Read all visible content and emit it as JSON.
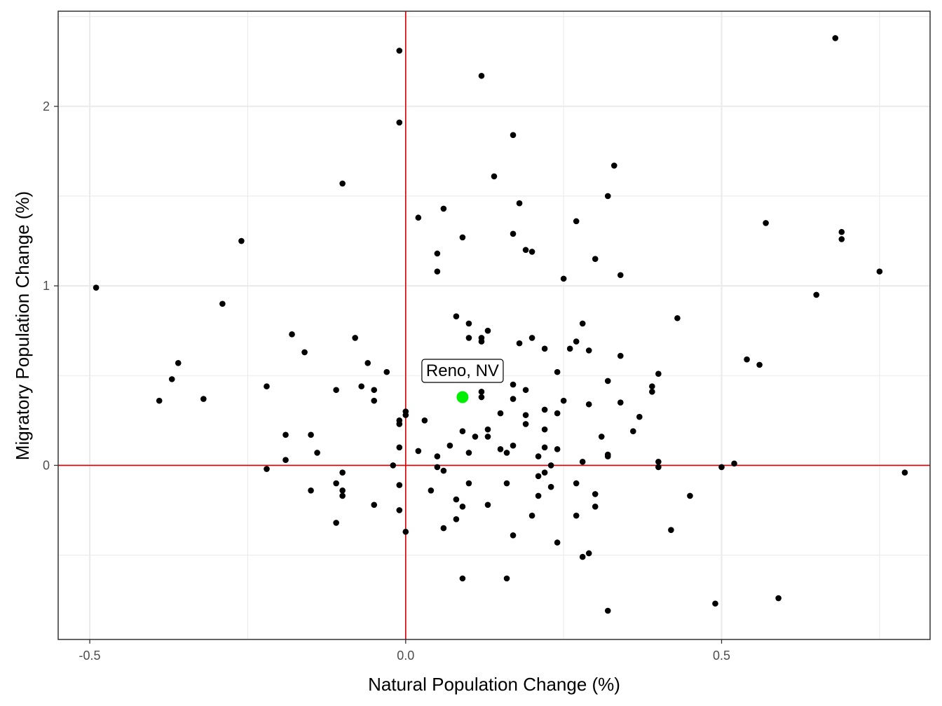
{
  "chart_data": {
    "type": "scatter",
    "xlabel": "Natural Population Change (%)",
    "ylabel": "Migratory Population Change (%)",
    "xlim": [
      -0.55,
      0.83
    ],
    "ylim": [
      -0.97,
      2.53
    ],
    "x_ticks": [
      -0.5,
      0.0,
      0.5
    ],
    "x_tick_labels": [
      "-0.5",
      "0.0",
      "0.5"
    ],
    "y_ticks": [
      0,
      1,
      2
    ],
    "y_tick_labels": [
      "0",
      "1",
      "2"
    ],
    "grid": true,
    "reference_lines": {
      "x": 0,
      "y": 0,
      "color": "#dd0000"
    },
    "point_color": "#000000",
    "highlight_color": "#00ee00",
    "points": [
      [
        -0.49,
        0.99
      ],
      [
        -0.39,
        0.36
      ],
      [
        -0.37,
        0.48
      ],
      [
        -0.36,
        0.57
      ],
      [
        -0.32,
        0.37
      ],
      [
        -0.29,
        0.9
      ],
      [
        -0.26,
        1.25
      ],
      [
        -0.22,
        0.44
      ],
      [
        -0.22,
        -0.02
      ],
      [
        -0.19,
        0.17
      ],
      [
        -0.19,
        0.03
      ],
      [
        -0.18,
        0.73
      ],
      [
        -0.16,
        0.63
      ],
      [
        -0.15,
        0.17
      ],
      [
        -0.15,
        -0.14
      ],
      [
        -0.14,
        0.07
      ],
      [
        -0.11,
        0.42
      ],
      [
        -0.11,
        -0.1
      ],
      [
        -0.11,
        -0.32
      ],
      [
        -0.1,
        1.57
      ],
      [
        -0.1,
        -0.04
      ],
      [
        -0.1,
        -0.14
      ],
      [
        -0.1,
        -0.17
      ],
      [
        -0.08,
        0.71
      ],
      [
        -0.07,
        0.44
      ],
      [
        -0.06,
        0.57
      ],
      [
        -0.05,
        0.42
      ],
      [
        -0.05,
        0.36
      ],
      [
        -0.05,
        -0.22
      ],
      [
        -0.03,
        0.52
      ],
      [
        -0.02,
        0.0
      ],
      [
        -0.01,
        2.31
      ],
      [
        -0.01,
        1.91
      ],
      [
        -0.01,
        0.25
      ],
      [
        -0.01,
        0.23
      ],
      [
        -0.01,
        0.1
      ],
      [
        -0.01,
        -0.11
      ],
      [
        -0.01,
        -0.25
      ],
      [
        0.0,
        0.3
      ],
      [
        0.0,
        0.28
      ],
      [
        0.0,
        -0.37
      ],
      [
        0.02,
        1.38
      ],
      [
        0.02,
        0.08
      ],
      [
        0.03,
        0.52
      ],
      [
        0.03,
        0.25
      ],
      [
        0.04,
        -0.14
      ],
      [
        0.05,
        1.18
      ],
      [
        0.05,
        1.08
      ],
      [
        0.05,
        0.05
      ],
      [
        0.05,
        -0.01
      ],
      [
        0.06,
        1.43
      ],
      [
        0.06,
        -0.03
      ],
      [
        0.06,
        -0.35
      ],
      [
        0.07,
        0.11
      ],
      [
        0.08,
        0.83
      ],
      [
        0.08,
        -0.19
      ],
      [
        0.08,
        -0.3
      ],
      [
        0.09,
        1.27
      ],
      [
        0.09,
        0.19
      ],
      [
        0.09,
        -0.23
      ],
      [
        0.09,
        -0.63
      ],
      [
        0.1,
        0.79
      ],
      [
        0.1,
        0.71
      ],
      [
        0.1,
        0.07
      ],
      [
        0.1,
        -0.1
      ],
      [
        0.11,
        0.16
      ],
      [
        0.12,
        2.17
      ],
      [
        0.12,
        0.71
      ],
      [
        0.12,
        0.69
      ],
      [
        0.12,
        0.41
      ],
      [
        0.12,
        0.38
      ],
      [
        0.13,
        0.75
      ],
      [
        0.13,
        0.2
      ],
      [
        0.13,
        0.16
      ],
      [
        0.13,
        -0.22
      ],
      [
        0.14,
        1.61
      ],
      [
        0.15,
        0.29
      ],
      [
        0.15,
        0.09
      ],
      [
        0.16,
        0.07
      ],
      [
        0.16,
        -0.1
      ],
      [
        0.16,
        -0.63
      ],
      [
        0.17,
        1.84
      ],
      [
        0.17,
        1.29
      ],
      [
        0.17,
        0.45
      ],
      [
        0.17,
        0.37
      ],
      [
        0.17,
        0.11
      ],
      [
        0.17,
        -0.39
      ],
      [
        0.18,
        1.46
      ],
      [
        0.18,
        0.68
      ],
      [
        0.19,
        1.2
      ],
      [
        0.19,
        0.42
      ],
      [
        0.19,
        0.28
      ],
      [
        0.19,
        0.23
      ],
      [
        0.2,
        1.19
      ],
      [
        0.2,
        0.71
      ],
      [
        0.2,
        -0.28
      ],
      [
        0.21,
        0.05
      ],
      [
        0.21,
        -0.06
      ],
      [
        0.21,
        -0.17
      ],
      [
        0.22,
        0.65
      ],
      [
        0.22,
        0.31
      ],
      [
        0.22,
        0.2
      ],
      [
        0.22,
        0.1
      ],
      [
        0.22,
        -0.04
      ],
      [
        0.23,
        0.0
      ],
      [
        0.23,
        -0.12
      ],
      [
        0.24,
        0.52
      ],
      [
        0.24,
        0.29
      ],
      [
        0.24,
        0.09
      ],
      [
        0.24,
        -0.43
      ],
      [
        0.25,
        1.04
      ],
      [
        0.25,
        0.36
      ],
      [
        0.26,
        0.65
      ],
      [
        0.27,
        1.36
      ],
      [
        0.27,
        0.69
      ],
      [
        0.27,
        -0.1
      ],
      [
        0.27,
        -0.28
      ],
      [
        0.28,
        0.79
      ],
      [
        0.28,
        0.02
      ],
      [
        0.28,
        -0.51
      ],
      [
        0.29,
        0.64
      ],
      [
        0.29,
        0.34
      ],
      [
        0.29,
        -0.49
      ],
      [
        0.3,
        1.15
      ],
      [
        0.3,
        -0.16
      ],
      [
        0.3,
        -0.23
      ],
      [
        0.31,
        0.16
      ],
      [
        0.32,
        1.5
      ],
      [
        0.32,
        0.47
      ],
      [
        0.32,
        0.06
      ],
      [
        0.32,
        0.05
      ],
      [
        0.32,
        -0.81
      ],
      [
        0.33,
        1.67
      ],
      [
        0.34,
        1.06
      ],
      [
        0.34,
        0.61
      ],
      [
        0.34,
        0.35
      ],
      [
        0.36,
        0.19
      ],
      [
        0.37,
        0.27
      ],
      [
        0.39,
        0.44
      ],
      [
        0.39,
        0.41
      ],
      [
        0.4,
        0.51
      ],
      [
        0.4,
        0.02
      ],
      [
        0.4,
        -0.01
      ],
      [
        0.42,
        -0.36
      ],
      [
        0.43,
        0.82
      ],
      [
        0.45,
        -0.17
      ],
      [
        0.49,
        -0.77
      ],
      [
        0.5,
        -0.01
      ],
      [
        0.52,
        0.01
      ],
      [
        0.54,
        0.59
      ],
      [
        0.56,
        0.56
      ],
      [
        0.57,
        1.35
      ],
      [
        0.59,
        -0.74
      ],
      [
        0.65,
        0.95
      ],
      [
        0.68,
        2.38
      ],
      [
        0.69,
        1.3
      ],
      [
        0.69,
        1.26
      ],
      [
        0.75,
        1.08
      ],
      [
        0.79,
        -0.04
      ]
    ],
    "highlight": {
      "label": "Reno, NV",
      "x": 0.09,
      "y": 0.38
    }
  }
}
